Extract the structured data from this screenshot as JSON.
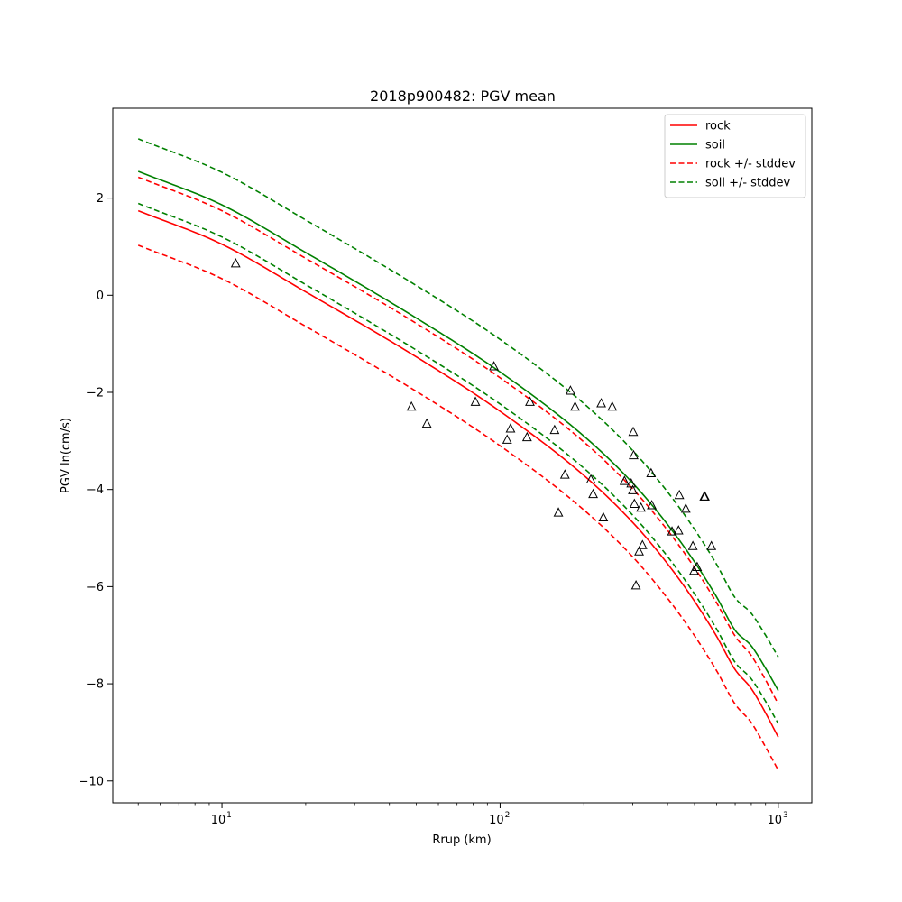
{
  "chart_data": {
    "type": "line",
    "title": "2018p900482: PGV mean",
    "xlabel": "Rrup (km)",
    "ylabel": "PGV ln(cm/s)",
    "xscale": "log",
    "xlim": [
      4.05,
      1320
    ],
    "ylim": [
      -10.45,
      3.85
    ],
    "x_ticks": [
      10,
      100,
      1000
    ],
    "x_tick_labels": [
      "10",
      "10",
      "10"
    ],
    "x_tick_exponents": [
      "1",
      "2",
      "3"
    ],
    "y_ticks": [
      2,
      0,
      -2,
      -4,
      -6,
      -8,
      -10
    ],
    "y_tick_labels": [
      "2",
      "0",
      "−2",
      "−4",
      "−6",
      "−8",
      "−10"
    ],
    "grid": false,
    "legend_position": "top-right",
    "series": [
      {
        "name": "rock",
        "style": "solid",
        "color": "#ff0000",
        "x": [
          5,
          10,
          20,
          50,
          100,
          200,
          300,
          400,
          500,
          600,
          700,
          800,
          900,
          1000
        ],
        "y": [
          1.74,
          1.05,
          0.07,
          -1.27,
          -2.39,
          -3.71,
          -4.68,
          -5.53,
          -6.3,
          -7.02,
          -7.71,
          -8.1,
          -8.6,
          -9.1
        ]
      },
      {
        "name": "soil",
        "style": "solid",
        "color": "#008000",
        "x": [
          5,
          10,
          20,
          50,
          100,
          200,
          300,
          400,
          500,
          600,
          700,
          800,
          900,
          1000
        ],
        "y": [
          2.55,
          1.86,
          0.88,
          -0.47,
          -1.58,
          -2.9,
          -3.87,
          -4.72,
          -5.49,
          -6.21,
          -6.9,
          -7.22,
          -7.68,
          -8.14
        ]
      },
      {
        "name": "rock +/- stddev",
        "style": "dashed",
        "color": "#ff0000",
        "x": [
          5,
          10,
          20,
          50,
          100,
          200,
          300,
          400,
          500,
          600,
          700,
          800,
          900,
          1000
        ],
        "y": [
          2.43,
          1.74,
          0.76,
          -0.58,
          -1.7,
          -3.02,
          -3.99,
          -4.84,
          -5.61,
          -6.33,
          -7.02,
          -7.42,
          -7.92,
          -8.42
        ]
      },
      {
        "name": "",
        "style": "dashed",
        "color": "#ff0000",
        "x": [
          5,
          10,
          20,
          50,
          100,
          200,
          300,
          400,
          500,
          600,
          700,
          800,
          900,
          1000
        ],
        "y": [
          1.03,
          0.34,
          -0.64,
          -1.98,
          -3.1,
          -4.42,
          -5.39,
          -6.24,
          -7.01,
          -7.73,
          -8.42,
          -8.8,
          -9.3,
          -9.78
        ]
      },
      {
        "name": "soil +/- stddev",
        "style": "dashed",
        "color": "#008000",
        "x": [
          5,
          10,
          20,
          50,
          100,
          200,
          300,
          400,
          500,
          600,
          700,
          800,
          900,
          1000
        ],
        "y": [
          3.22,
          2.53,
          1.55,
          0.2,
          -0.91,
          -2.23,
          -3.2,
          -4.05,
          -4.82,
          -5.54,
          -6.23,
          -6.55,
          -7.0,
          -7.45
        ]
      },
      {
        "name": "",
        "style": "dashed",
        "color": "#008000",
        "x": [
          5,
          10,
          20,
          50,
          100,
          200,
          300,
          400,
          500,
          600,
          700,
          800,
          900,
          1000
        ],
        "y": [
          1.89,
          1.2,
          0.22,
          -1.13,
          -2.24,
          -3.56,
          -4.53,
          -5.38,
          -6.15,
          -6.87,
          -7.56,
          -7.9,
          -8.36,
          -8.82
        ]
      }
    ],
    "observations": {
      "marker": "triangle-open",
      "color": "#000000",
      "points": [
        [
          11.2,
          0.65
        ],
        [
          48,
          -2.3
        ],
        [
          54.5,
          -2.65
        ],
        [
          81.5,
          -2.2
        ],
        [
          95,
          -1.47
        ],
        [
          106,
          -2.98
        ],
        [
          109,
          -2.75
        ],
        [
          125,
          -2.93
        ],
        [
          128,
          -2.2
        ],
        [
          157,
          -2.78
        ],
        [
          162,
          -4.48
        ],
        [
          171,
          -3.7
        ],
        [
          179,
          -1.97
        ],
        [
          186,
          -2.3
        ],
        [
          212,
          -3.8
        ],
        [
          216,
          -4.1
        ],
        [
          231,
          -2.23
        ],
        [
          235,
          -4.58
        ],
        [
          253,
          -2.3
        ],
        [
          280,
          -3.83
        ],
        [
          296,
          -3.88
        ],
        [
          300,
          -4.02
        ],
        [
          301,
          -2.82
        ],
        [
          302,
          -3.3
        ],
        [
          304,
          -4.3
        ],
        [
          308,
          -5.98
        ],
        [
          316,
          -5.28
        ],
        [
          321,
          -4.38
        ],
        [
          325,
          -5.15
        ],
        [
          349,
          -3.67
        ],
        [
          351,
          -4.33
        ],
        [
          415,
          -4.87
        ],
        [
          438,
          -4.85
        ],
        [
          441,
          -4.12
        ],
        [
          465,
          -4.4
        ],
        [
          493,
          -5.17
        ],
        [
          498,
          -5.68
        ],
        [
          511,
          -5.6
        ],
        [
          542,
          -4.15
        ],
        [
          545,
          -4.15
        ],
        [
          575,
          -5.17
        ]
      ]
    }
  }
}
